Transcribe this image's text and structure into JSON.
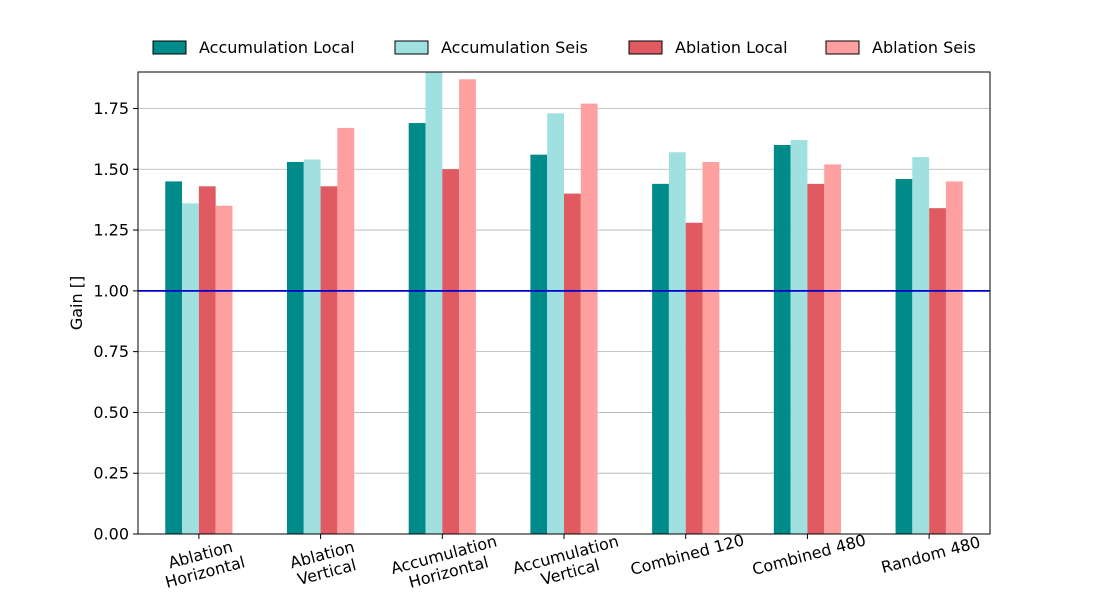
{
  "chart_data": {
    "type": "bar",
    "title": "",
    "xlabel": "",
    "ylabel": "Gain []",
    "ylim": [
      0,
      1.9
    ],
    "yticks": [
      "0.00",
      "0.25",
      "0.50",
      "0.75",
      "1.00",
      "1.25",
      "1.50",
      "1.75"
    ],
    "grid": true,
    "legend_position": "top",
    "categories": [
      [
        "Ablation",
        "Horizontal"
      ],
      [
        "Ablation",
        "Vertical"
      ],
      [
        "Accumulation",
        "Horizontal"
      ],
      [
        "Accumulation",
        "Vertical"
      ],
      [
        "Combined 120"
      ],
      [
        "Combined 480"
      ],
      [
        "Random 480"
      ]
    ],
    "reference_line": {
      "y": 1.0,
      "color": "#0000cc"
    },
    "series": [
      {
        "name": "Accumulation Local",
        "color": "#008b8b",
        "values": [
          1.45,
          1.53,
          1.69,
          1.56,
          1.44,
          1.6,
          1.46
        ]
      },
      {
        "name": "Accumulation Seis",
        "color": "#a0e0e0",
        "values": [
          1.36,
          1.54,
          1.9,
          1.73,
          1.57,
          1.62,
          1.55
        ]
      },
      {
        "name": "Ablation Local",
        "color": "#e05a62",
        "values": [
          1.43,
          1.43,
          1.5,
          1.4,
          1.28,
          1.44,
          1.34
        ]
      },
      {
        "name": "Ablation Seis",
        "color": "#ffa0a0",
        "values": [
          1.35,
          1.67,
          1.87,
          1.77,
          1.53,
          1.52,
          1.45
        ]
      }
    ]
  }
}
